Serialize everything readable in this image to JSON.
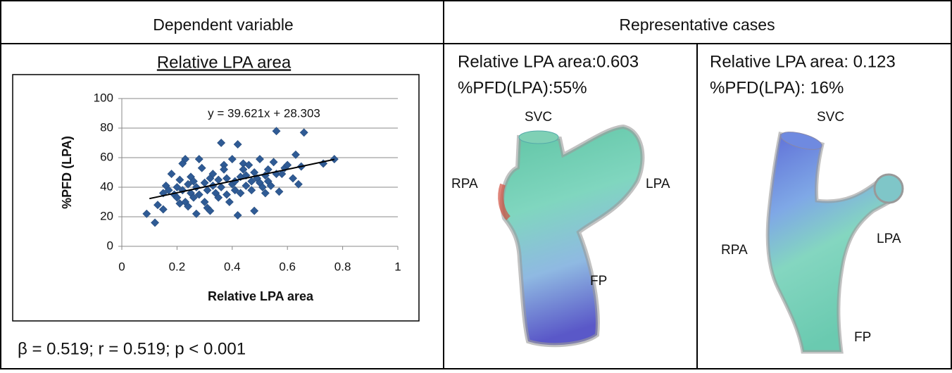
{
  "table": {
    "headers": [
      "Dependent variable",
      "Representative cases"
    ]
  },
  "chart_data": {
    "type": "scatter",
    "title": "Relative LPA area",
    "annotation": "y = 39.621x + 28.303",
    "x_label": "Relative LPA area",
    "y_label": "%PFD (LPA)",
    "x": [
      0.09,
      0.12,
      0.13,
      0.15,
      0.15,
      0.16,
      0.17,
      0.18,
      0.19,
      0.2,
      0.2,
      0.21,
      0.21,
      0.22,
      0.22,
      0.23,
      0.23,
      0.24,
      0.24,
      0.25,
      0.25,
      0.26,
      0.26,
      0.27,
      0.27,
      0.28,
      0.28,
      0.29,
      0.3,
      0.3,
      0.31,
      0.31,
      0.32,
      0.32,
      0.33,
      0.33,
      0.34,
      0.35,
      0.35,
      0.36,
      0.36,
      0.37,
      0.37,
      0.38,
      0.38,
      0.39,
      0.4,
      0.4,
      0.41,
      0.41,
      0.42,
      0.42,
      0.43,
      0.43,
      0.44,
      0.44,
      0.45,
      0.45,
      0.46,
      0.47,
      0.47,
      0.48,
      0.48,
      0.49,
      0.5,
      0.5,
      0.51,
      0.52,
      0.52,
      0.53,
      0.53,
      0.54,
      0.55,
      0.56,
      0.56,
      0.57,
      0.58,
      0.59,
      0.6,
      0.62,
      0.63,
      0.64,
      0.65,
      0.66,
      0.73,
      0.77
    ],
    "values": [
      22,
      16,
      28,
      25,
      36,
      41,
      38,
      49,
      35,
      33,
      40,
      29,
      45,
      56,
      38,
      59,
      30,
      42,
      27,
      36,
      47,
      44,
      33,
      22,
      40,
      59,
      35,
      53,
      30,
      43,
      38,
      26,
      46,
      24,
      41,
      49,
      36,
      45,
      33,
      70,
      40,
      55,
      52,
      46,
      35,
      30,
      42,
      59,
      44,
      38,
      21,
      69,
      47,
      36,
      56,
      52,
      41,
      48,
      55,
      44,
      38,
      24,
      50,
      46,
      43,
      59,
      40,
      48,
      36,
      52,
      44,
      41,
      57,
      78,
      49,
      37,
      49,
      53,
      55,
      46,
      62,
      42,
      54,
      77,
      56,
      59
    ],
    "color": "#2f5b95",
    "xlim": [
      0,
      1
    ],
    "ylim": [
      0,
      100
    ],
    "xticks": [
      0,
      0.2,
      0.4,
      0.6,
      0.8,
      1
    ],
    "yticks": [
      0,
      20,
      40,
      60,
      80,
      100
    ],
    "grid": true,
    "trendline": {
      "x": [
        0.1,
        0.77
      ],
      "y": [
        32.3,
        58.8
      ]
    }
  },
  "stats": "β = 0.519; r = 0.519; p < 0.001",
  "cases": [
    {
      "area_label": "Relative LPA area:0.603",
      "pfd_label": "%PFD(LPA):55%",
      "labels": [
        "SVC",
        "RPA",
        "LPA",
        "FP"
      ]
    },
    {
      "area_label": "Relative LPA area: 0.123",
      "pfd_label": "%PFD(LPA): 16%",
      "labels": [
        "SVC",
        "RPA",
        "LPA",
        "FP"
      ]
    }
  ]
}
